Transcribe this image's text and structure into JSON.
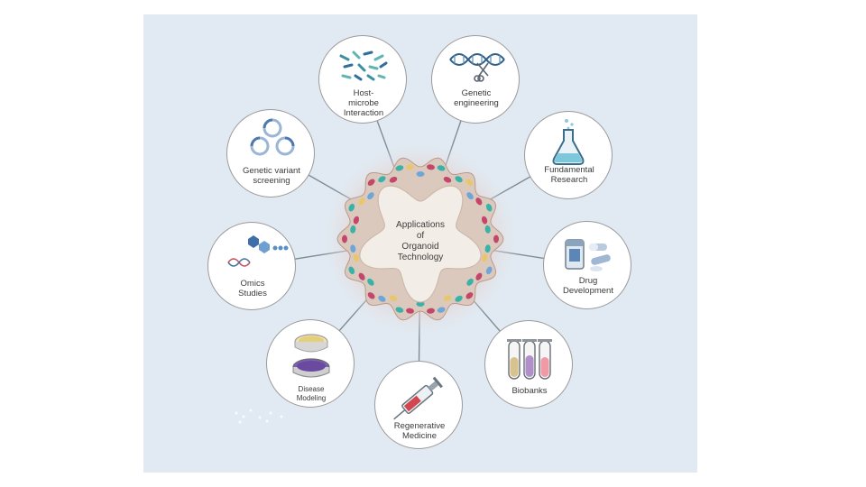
{
  "center": {
    "title": "Applications\nof\nOrganoid\nTechnology"
  },
  "applications": {
    "host_microbe": "Host-\nmicrobe\nInteraction",
    "genetic_engineering": "Genetic\nengineering",
    "fundamental_research": "Fundamental\nResearch",
    "drug_development": "Drug\nDevelopment",
    "biobanks": "Biobanks",
    "regenerative_medicine": "Regenerative\nMedicine",
    "disease_modeling": "Disease\nModeling",
    "omics_studies": "Omics\nStudies",
    "genetic_variant_screening": "Genetic variant\nscreening"
  },
  "colors": {
    "background_panel": "#e1eaf2",
    "organoid_glow": "#e8c9c1",
    "lumen": "#f3ede7",
    "epithelium": "#dcc9bd",
    "cell_red": "#c2476b",
    "cell_teal": "#3bb2a8",
    "cell_yellow": "#e8c76c",
    "cell_blue": "#6fa6d8",
    "connector": "#7f8c94"
  },
  "icons": {
    "host_microbe": "bacteria-icon",
    "genetic_engineering": "dna-scissors-icon",
    "fundamental_research": "flask-icon",
    "drug_development": "pills-icon",
    "biobanks": "test-tubes-icon",
    "regenerative_medicine": "syringe-icon",
    "disease_modeling": "petri-dish-icon",
    "omics_studies": "molecules-icon",
    "genetic_variant_screening": "rings-icon"
  }
}
